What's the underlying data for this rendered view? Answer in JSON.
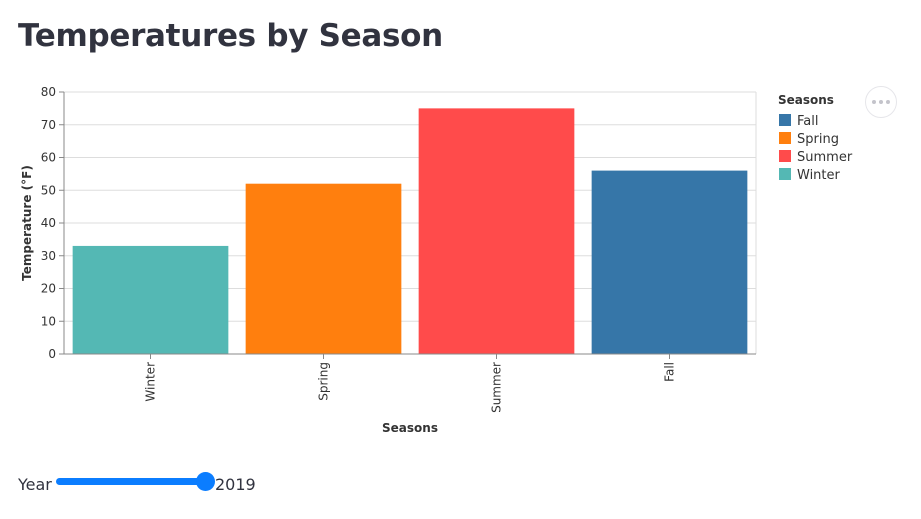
{
  "page": {
    "title": "Temperatures by Season"
  },
  "chart_data": {
    "type": "bar",
    "categories": [
      "Winter",
      "Spring",
      "Summer",
      "Fall"
    ],
    "values": [
      33,
      52,
      75,
      56
    ],
    "colors": [
      "#54b8b4",
      "#ff7f0e",
      "#ff4b4b",
      "#3676a8"
    ],
    "xlabel": "Seasons",
    "ylabel": "Temperature (°F)",
    "ylim": [
      0,
      80
    ],
    "yticks": [
      "0",
      "10",
      "20",
      "30",
      "40",
      "50",
      "60",
      "70",
      "80"
    ],
    "grid": true,
    "legend": {
      "title": "Seasons",
      "placement": "right",
      "entries": [
        {
          "label": "Fall",
          "color": "#3676a8"
        },
        {
          "label": "Spring",
          "color": "#ff7f0e"
        },
        {
          "label": "Summer",
          "color": "#ff4b4b"
        },
        {
          "label": "Winter",
          "color": "#54b8b4"
        }
      ]
    }
  },
  "menu": {
    "icon": "more-horizontal-icon"
  },
  "slider": {
    "label": "Year",
    "value": "2019",
    "accent_color": "#0b7dff"
  }
}
